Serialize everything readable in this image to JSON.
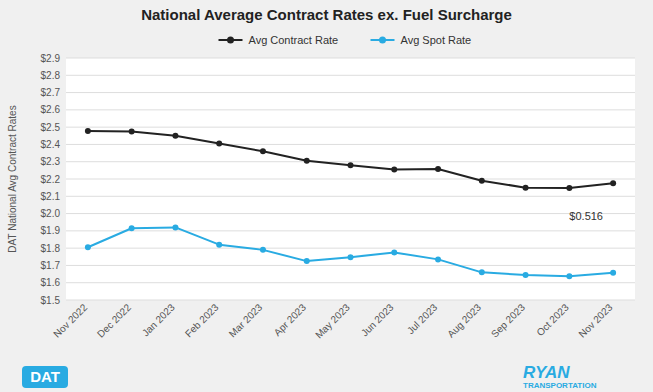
{
  "chart_data": {
    "type": "line",
    "title": "National Average Contract Rates ex. Fuel Surcharge",
    "ylabel": "DAT National Avg Contract Rates",
    "categories": [
      "Nov 2022",
      "Dec 2022",
      "Jan 2023",
      "Feb 2023",
      "Mar 2023",
      "Apr 2023",
      "May 2023",
      "Jun 2023",
      "Jul 2023",
      "Aug 2023",
      "Sep 2023",
      "Oct 2023",
      "Nov 2023"
    ],
    "series": [
      {
        "name": "Avg Contract Rate",
        "color": "#222222",
        "marker": "circle",
        "values": [
          2.478,
          2.475,
          2.45,
          2.405,
          2.36,
          2.305,
          2.28,
          2.255,
          2.258,
          2.19,
          2.15,
          2.148,
          2.175
        ]
      },
      {
        "name": "Avg Spot Rate",
        "color": "#29ABE2",
        "marker": "circle",
        "values": [
          1.805,
          1.915,
          1.92,
          1.82,
          1.79,
          1.725,
          1.748,
          1.775,
          1.735,
          1.66,
          1.645,
          1.638,
          1.658
        ]
      }
    ],
    "ylim": [
      1.5,
      2.9
    ],
    "yticks": [
      {
        "value": 1.5,
        "label": "$1.5"
      },
      {
        "value": 1.6,
        "label": "$1.6"
      },
      {
        "value": 1.7,
        "label": "$1.7"
      },
      {
        "value": 1.8,
        "label": "$1.8"
      },
      {
        "value": 1.9,
        "label": "$1.9"
      },
      {
        "value": 2.0,
        "label": "$2.0"
      },
      {
        "value": 2.1,
        "label": "$2.1"
      },
      {
        "value": 2.2,
        "label": "$2.2"
      },
      {
        "value": 2.3,
        "label": "$2.3"
      },
      {
        "value": 2.4,
        "label": "$2.4"
      },
      {
        "value": 2.5,
        "label": "$2.5"
      },
      {
        "value": 2.6,
        "label": "$2.6"
      },
      {
        "value": 2.7,
        "label": "$2.7"
      },
      {
        "value": 2.8,
        "label": "$2.8"
      },
      {
        "value": 2.9,
        "label": "$2.9"
      }
    ],
    "grid": true,
    "legend": "top",
    "annotations": [
      {
        "text": "$0.516",
        "x": 11,
        "y": 1.96
      }
    ],
    "logo_texts": [
      "DAT",
      "RYAN",
      "TRANSPORTATION"
    ]
  }
}
